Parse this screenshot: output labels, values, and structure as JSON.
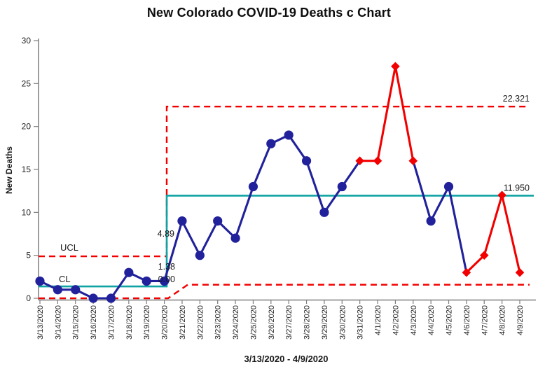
{
  "chart_data": {
    "type": "line",
    "subtype": "c-control-chart",
    "title": "New Colorado COVID-19 Deaths c Chart",
    "xlabel": "3/13/2020 - 4/9/2020",
    "ylabel": "New Deaths",
    "ylim": [
      0,
      30
    ],
    "yticks": [
      0,
      5,
      10,
      15,
      20,
      25,
      30
    ],
    "grid": false,
    "legend": false,
    "categories": [
      "3/13/2020",
      "3/14/2020",
      "3/15/2020",
      "3/16/2020",
      "3/17/2020",
      "3/18/2020",
      "3/19/2020",
      "3/20/2020",
      "3/21/2020",
      "3/22/2020",
      "3/23/2020",
      "3/24/2020",
      "3/25/2020",
      "3/26/2020",
      "3/27/2020",
      "3/28/2020",
      "3/29/2020",
      "3/30/2020",
      "3/31/2020",
      "4/1/2020",
      "4/2/2020",
      "4/3/2020",
      "4/4/2020",
      "4/5/2020",
      "4/6/2020",
      "4/7/2020",
      "4/8/2020",
      "4/9/2020"
    ],
    "series": [
      {
        "name": "New Deaths",
        "values": [
          2,
          1,
          1,
          0,
          0,
          3,
          2,
          2,
          9,
          5,
          9,
          7,
          13,
          18,
          19,
          16,
          10,
          13,
          16,
          16,
          27,
          16,
          9,
          13,
          3,
          5,
          12,
          3
        ],
        "point_states": [
          "normal",
          "normal",
          "normal",
          "normal",
          "normal",
          "normal",
          "normal",
          "normal",
          "normal",
          "normal",
          "normal",
          "normal",
          "normal",
          "normal",
          "normal",
          "normal",
          "normal",
          "normal",
          "signal",
          "signal",
          "signal",
          "signal",
          "normal",
          "normal",
          "signal",
          "signal",
          "signal",
          "signal"
        ]
      }
    ],
    "control_limits": {
      "phase1": {
        "ucl": 4.89,
        "cl": 1.38,
        "lcl": 0.0,
        "end_category": "3/20/2020",
        "ucl_label": "4.89",
        "cl_label": "1.38",
        "lcl_label": "0.00"
      },
      "phase2": {
        "ucl": 22.321,
        "cl": 11.95,
        "lcl": 1.58,
        "start_category": "3/21/2020",
        "ucl_label": "22.321",
        "cl_label": "11.950"
      }
    },
    "line_labels": {
      "ucl": "UCL",
      "cl": "CL"
    },
    "colors": {
      "normal_point": "#21219b",
      "signal_point": "#f20000",
      "center_line": "#0fa3a3",
      "limit_line": "#f20000",
      "axis": "#7f7f7f",
      "tick_text": "#262626",
      "annotation_text": "#1a1a1a"
    }
  }
}
